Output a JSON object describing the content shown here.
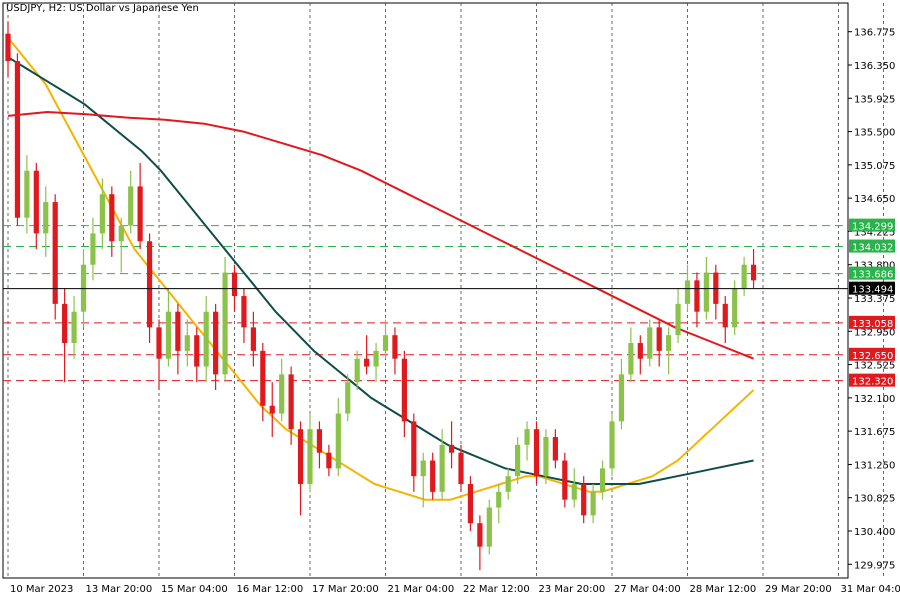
{
  "header": {
    "symbol": "USDJPY",
    "timeframe": "H2",
    "description": "US Dollar vs Japanese Yen",
    "title": "USDJPY, H2:  US Dollar vs Japanese Yen"
  },
  "colors": {
    "bull": "#8bc34a",
    "bear": "#e0191e",
    "ma_fast": "#f5b400",
    "ma_mid": "#0e4e47",
    "ma_slow": "#e0191e",
    "level_support": "#e0191e",
    "level_resist": "#2bb24c",
    "price_line": "#000000",
    "grid": "#444444"
  },
  "chart_data": {
    "type": "candlestick",
    "symbol": "USDJPY",
    "timeframe": "H2",
    "ylim": [
      129.8,
      136.95
    ],
    "yticks": [
      136.775,
      136.35,
      135.925,
      135.5,
      135.075,
      134.65,
      134.225,
      133.8,
      133.375,
      132.95,
      132.525,
      132.1,
      131.675,
      131.25,
      130.825,
      130.4,
      129.975
    ],
    "xticks": [
      {
        "label": "10 Mar 2023",
        "index": 0
      },
      {
        "label": "13 Mar 20:00",
        "index": 8
      },
      {
        "label": "15 Mar 04:00",
        "index": 16
      },
      {
        "label": "16 Mar 12:00",
        "index": 24
      },
      {
        "label": "17 Mar 20:00",
        "index": 32
      },
      {
        "label": "21 Mar 04:00",
        "index": 40
      },
      {
        "label": "22 Mar 12:00",
        "index": 48
      },
      {
        "label": "23 Mar 20:00",
        "index": 56
      },
      {
        "label": "27 Mar 04:00",
        "index": 64
      },
      {
        "label": "28 Mar 12:00",
        "index": 72
      },
      {
        "label": "29 Mar 20:00",
        "index": 80
      },
      {
        "label": "31 Mar 04:00",
        "index": 88
      }
    ],
    "candles": [
      [
        136.75,
        136.9,
        136.2,
        136.4
      ],
      [
        136.4,
        136.5,
        134.3,
        134.4
      ],
      [
        134.4,
        135.2,
        134.2,
        135.0
      ],
      [
        135.0,
        135.1,
        134.0,
        134.2
      ],
      [
        134.2,
        134.8,
        133.9,
        134.6
      ],
      [
        134.6,
        134.7,
        133.1,
        133.3
      ],
      [
        133.3,
        133.5,
        132.3,
        132.8
      ],
      [
        132.8,
        133.4,
        132.6,
        133.2
      ],
      [
        133.2,
        134.0,
        133.0,
        133.8
      ],
      [
        133.8,
        134.4,
        133.6,
        134.2
      ],
      [
        134.2,
        134.9,
        134.0,
        134.7
      ],
      [
        134.7,
        134.8,
        133.9,
        134.1
      ],
      [
        134.1,
        134.4,
        133.7,
        134.3
      ],
      [
        134.3,
        135.0,
        134.2,
        134.8
      ],
      [
        134.8,
        135.1,
        134.0,
        134.1
      ],
      [
        134.1,
        134.2,
        132.8,
        133.0
      ],
      [
        133.0,
        133.1,
        132.2,
        132.6
      ],
      [
        132.6,
        133.5,
        132.5,
        133.2
      ],
      [
        133.2,
        133.3,
        132.4,
        132.7
      ],
      [
        132.7,
        133.1,
        132.5,
        132.9
      ],
      [
        132.9,
        133.0,
        132.3,
        132.5
      ],
      [
        132.5,
        133.4,
        132.3,
        133.2
      ],
      [
        133.2,
        133.3,
        132.2,
        132.4
      ],
      [
        132.4,
        133.9,
        132.3,
        133.7
      ],
      [
        133.7,
        133.8,
        133.2,
        133.4
      ],
      [
        133.4,
        133.5,
        132.8,
        133.0
      ],
      [
        133.0,
        133.2,
        132.5,
        132.7
      ],
      [
        132.7,
        132.8,
        131.8,
        132.0
      ],
      [
        132.0,
        132.3,
        131.6,
        131.9
      ],
      [
        131.9,
        132.6,
        131.8,
        132.4
      ],
      [
        132.4,
        132.5,
        131.5,
        131.7
      ],
      [
        131.7,
        131.8,
        130.6,
        131.0
      ],
      [
        131.0,
        131.9,
        130.9,
        131.7
      ],
      [
        131.7,
        131.8,
        131.2,
        131.4
      ],
      [
        131.4,
        131.5,
        131.1,
        131.2
      ],
      [
        131.2,
        132.1,
        131.1,
        131.9
      ],
      [
        131.9,
        132.4,
        131.8,
        132.3
      ],
      [
        132.3,
        132.7,
        132.2,
        132.6
      ],
      [
        132.6,
        132.9,
        132.4,
        132.5
      ],
      [
        132.5,
        132.8,
        132.3,
        132.7
      ],
      [
        132.7,
        133.1,
        132.6,
        132.9
      ],
      [
        132.9,
        133.0,
        132.4,
        132.6
      ],
      [
        132.6,
        132.7,
        131.6,
        131.8
      ],
      [
        131.8,
        131.9,
        130.9,
        131.1
      ],
      [
        131.1,
        131.4,
        130.7,
        131.3
      ],
      [
        131.3,
        131.4,
        130.8,
        130.9
      ],
      [
        130.9,
        131.7,
        130.8,
        131.5
      ],
      [
        131.5,
        131.8,
        131.2,
        131.4
      ],
      [
        131.4,
        131.5,
        130.9,
        131.0
      ],
      [
        131.0,
        131.1,
        130.4,
        130.5
      ],
      [
        130.5,
        130.6,
        129.9,
        130.2
      ],
      [
        130.2,
        130.8,
        130.1,
        130.7
      ],
      [
        130.7,
        131.0,
        130.5,
        130.9
      ],
      [
        130.9,
        131.2,
        130.8,
        131.1
      ],
      [
        131.1,
        131.6,
        131.0,
        131.5
      ],
      [
        131.5,
        131.8,
        131.3,
        131.7
      ],
      [
        131.7,
        131.8,
        131.0,
        131.1
      ],
      [
        131.1,
        131.7,
        131.0,
        131.6
      ],
      [
        131.6,
        131.7,
        131.2,
        131.3
      ],
      [
        131.3,
        131.4,
        130.7,
        130.8
      ],
      [
        130.8,
        131.2,
        130.7,
        131.0
      ],
      [
        131.0,
        131.1,
        130.5,
        130.6
      ],
      [
        130.6,
        131.0,
        130.5,
        130.9
      ],
      [
        130.9,
        131.3,
        130.8,
        131.2
      ],
      [
        131.2,
        131.9,
        131.1,
        131.8
      ],
      [
        131.8,
        132.6,
        131.7,
        132.4
      ],
      [
        132.4,
        133.0,
        132.3,
        132.8
      ],
      [
        132.8,
        132.9,
        132.4,
        132.6
      ],
      [
        132.6,
        133.1,
        132.5,
        133.0
      ],
      [
        133.0,
        133.1,
        132.5,
        132.7
      ],
      [
        132.7,
        133.0,
        132.4,
        132.9
      ],
      [
        132.9,
        133.5,
        132.8,
        133.3
      ],
      [
        133.3,
        133.8,
        133.2,
        133.6
      ],
      [
        133.6,
        133.7,
        133.0,
        133.2
      ],
      [
        133.2,
        133.9,
        133.1,
        133.7
      ],
      [
        133.7,
        133.8,
        133.1,
        133.3
      ],
      [
        133.3,
        133.4,
        132.8,
        133.0
      ],
      [
        133.0,
        133.6,
        132.9,
        133.5
      ],
      [
        133.5,
        133.9,
        133.4,
        133.8
      ],
      [
        133.8,
        134.0,
        133.5,
        133.6
      ]
    ],
    "series": [
      {
        "name": "MA fast",
        "color_key": "ma_fast",
        "values": [
          136.7,
          136.5,
          136.3,
          136.1,
          135.8,
          135.5,
          135.2,
          134.9,
          134.6,
          134.3,
          134.0,
          133.8,
          133.6,
          133.4,
          133.2,
          133.0,
          132.8,
          132.6,
          132.4,
          132.2,
          132.0,
          131.85,
          131.7,
          131.6,
          131.5,
          131.4,
          131.3,
          131.2,
          131.1,
          131.0,
          130.95,
          130.9,
          130.85,
          130.8,
          130.8,
          130.8,
          130.85,
          130.9,
          130.95,
          131.0,
          131.05,
          131.1,
          131.1,
          131.05,
          131.0,
          130.95,
          130.9,
          130.9,
          130.95,
          131.0,
          131.05,
          131.1,
          131.2,
          131.3,
          131.45,
          131.6,
          131.75,
          131.9,
          132.05,
          132.2
        ]
      },
      {
        "name": "MA mid",
        "color_key": "ma_mid",
        "values": [
          136.45,
          136.3,
          136.15,
          136.0,
          135.85,
          135.65,
          135.45,
          135.25,
          135.0,
          134.7,
          134.4,
          134.1,
          133.8,
          133.5,
          133.2,
          132.95,
          132.7,
          132.5,
          132.3,
          132.1,
          131.95,
          131.8,
          131.65,
          131.5,
          131.4,
          131.3,
          131.2,
          131.15,
          131.1,
          131.05,
          131.0,
          131.0,
          131.0,
          131.0,
          131.05,
          131.1,
          131.15,
          131.2,
          131.25,
          131.3
        ]
      },
      {
        "name": "MA slow",
        "color_key": "ma_slow",
        "values": [
          135.7,
          135.75,
          135.72,
          135.68,
          135.65,
          135.6,
          135.5,
          135.35,
          135.2,
          135.0,
          134.75,
          134.5,
          134.25,
          134.0,
          133.75,
          133.5,
          133.25,
          133.0,
          132.8,
          132.6
        ]
      }
    ],
    "levels": [
      {
        "price": 134.299,
        "label": "134.299",
        "kind": "resistance"
      },
      {
        "price": 134.032,
        "label": "134.032",
        "kind": "resistance"
      },
      {
        "price": 133.686,
        "label": "133.686",
        "kind": "resistance"
      },
      {
        "price": 133.058,
        "label": "133.058",
        "kind": "support"
      },
      {
        "price": 132.65,
        "label": "132.650",
        "kind": "support"
      },
      {
        "price": 132.32,
        "label": "132.320",
        "kind": "support"
      }
    ],
    "current_price": {
      "price": 133.494,
      "label": "133.494"
    }
  }
}
